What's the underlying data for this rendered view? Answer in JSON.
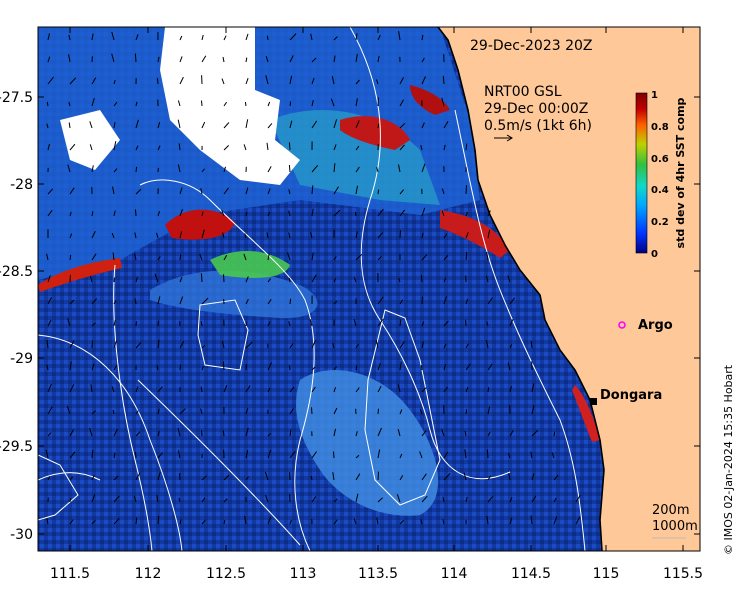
{
  "map": {
    "timestamp": "29-Dec-2023 20Z",
    "current_label": {
      "line1": "NRT00 GSL",
      "line2": "29-Dec 00:00Z",
      "line3": "0.5m/s (1kt 6h)"
    },
    "colorbar": {
      "label": "std dev of 4hr SST comp",
      "ticks": [
        "1",
        "0.8",
        "0.6",
        "0.4",
        "0.2",
        "0"
      ],
      "colors": [
        "#000080",
        "#0033ff",
        "#00a8ff",
        "#10d8c8",
        "#30c040",
        "#c0d000",
        "#ff6000",
        "#c00000",
        "#800000"
      ]
    },
    "x_ticks": [
      "111.5",
      "112",
      "112.5",
      "113",
      "113.5",
      "114",
      "114.5",
      "115",
      "115.5"
    ],
    "y_ticks": [
      "-27.5",
      "-28",
      "-28.5",
      "-29",
      "-29.5",
      "-30"
    ],
    "markers": {
      "argo": "Argo",
      "dongara": "Dongara"
    },
    "isobath_labels": [
      "200m",
      "1000m"
    ],
    "credit": "© IMOS 02-Jan-2024 15:35 Hobart",
    "colors": {
      "land": "#ffc898",
      "no_data": "#ffffff",
      "ocean_deep": "#0a2a9a",
      "ocean_mid": "#1e5ad8",
      "ocean_light": "#4aa0ee",
      "argo_marker": "#ff00ff",
      "contour": "#ffffff"
    }
  }
}
